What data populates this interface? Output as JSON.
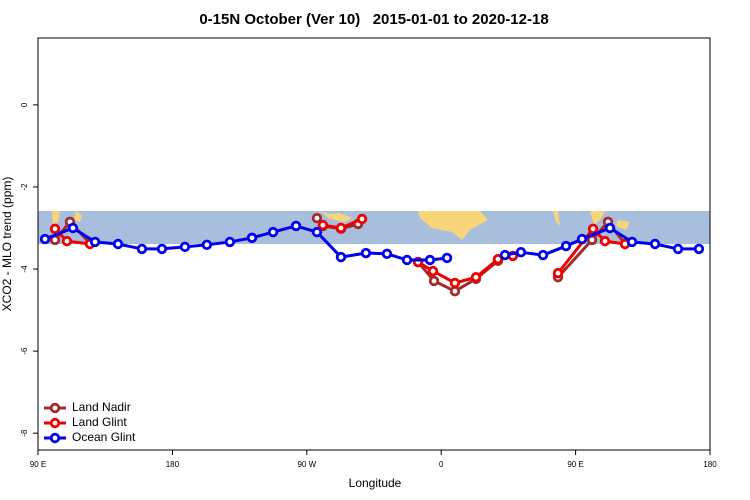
{
  "chart_data": {
    "type": "line",
    "title": "0-15N October (Ver 10)   2015-01-01 to 2020-12-18",
    "xlabel": "Longitude",
    "ylabel": "XCO2 - MLO trend (ppm)",
    "xlim": [
      90,
      540
    ],
    "ylim": [
      -8.41,
      1.63
    ],
    "xticks": [
      {
        "value": 90,
        "label": "90 E"
      },
      180,
      {
        "value": 270,
        "label": "90 W"
      },
      {
        "value": 360,
        "label": "0"
      },
      {
        "value": 450,
        "label": "90 E"
      },
      {
        "value": 540,
        "label": "180"
      }
    ],
    "yticks": [
      -8,
      -6,
      -4,
      -2,
      0
    ],
    "legend": "bottom-left",
    "series": [
      {
        "name": "Land Nadir",
        "color": "#a52a2a",
        "x": [
          101.4,
          111.4,
          124.8,
          null,
          276.8,
          280.8,
          292.9,
          304.3,
          null,
          344.5,
          355.2,
          369.2,
          383.3,
          398.0,
          null,
          438.2,
          461.0,
          471.7,
          483.1
        ],
        "values": [
          -3.29,
          -2.85,
          -3.37,
          null,
          -2.76,
          -2.95,
          -3.02,
          -2.9,
          null,
          -3.83,
          -4.29,
          -4.54,
          -4.24,
          -3.8,
          null,
          -4.2,
          -3.29,
          -2.85,
          -3.39
        ]
      },
      {
        "name": "Land Glint",
        "color": "#ee0000",
        "x": [
          101.4,
          109.4,
          124.8,
          null,
          280.8,
          292.9,
          307.0,
          null,
          344.5,
          354.5,
          369.2,
          383.3,
          398.0,
          408.0,
          null,
          438.2,
          461.7,
          469.7,
          483.1
        ],
        "values": [
          -3.02,
          -3.32,
          -3.39,
          null,
          -2.93,
          -3.0,
          -2.78,
          null,
          -3.83,
          -4.05,
          -4.34,
          -4.2,
          -3.76,
          -3.68,
          null,
          -4.1,
          -3.02,
          -3.32,
          -3.39
        ]
      },
      {
        "name": "Ocean Glint",
        "color": "#0000ee",
        "x": [
          94.7,
          113.4,
          128.2,
          143.6,
          159.6,
          173.0,
          188.4,
          203.1,
          218.5,
          233.3,
          247.4,
          262.8,
          276.8,
          292.9,
          309.6,
          323.7,
          337.1,
          352.5,
          363.9,
          null,
          402.7,
          413.4,
          428.2,
          443.6,
          454.3,
          473.0,
          487.8,
          503.2,
          518.6,
          532.6
        ],
        "values": [
          -3.27,
          -3.0,
          -3.34,
          -3.39,
          -3.51,
          -3.51,
          -3.46,
          -3.41,
          -3.34,
          -3.24,
          -3.1,
          -2.95,
          -3.1,
          -3.71,
          -3.61,
          -3.63,
          -3.78,
          -3.78,
          -3.73,
          null,
          -3.66,
          -3.59,
          -3.66,
          -3.44,
          -3.27,
          -3.0,
          -3.34,
          -3.39,
          -3.51,
          -3.51
        ]
      }
    ]
  }
}
